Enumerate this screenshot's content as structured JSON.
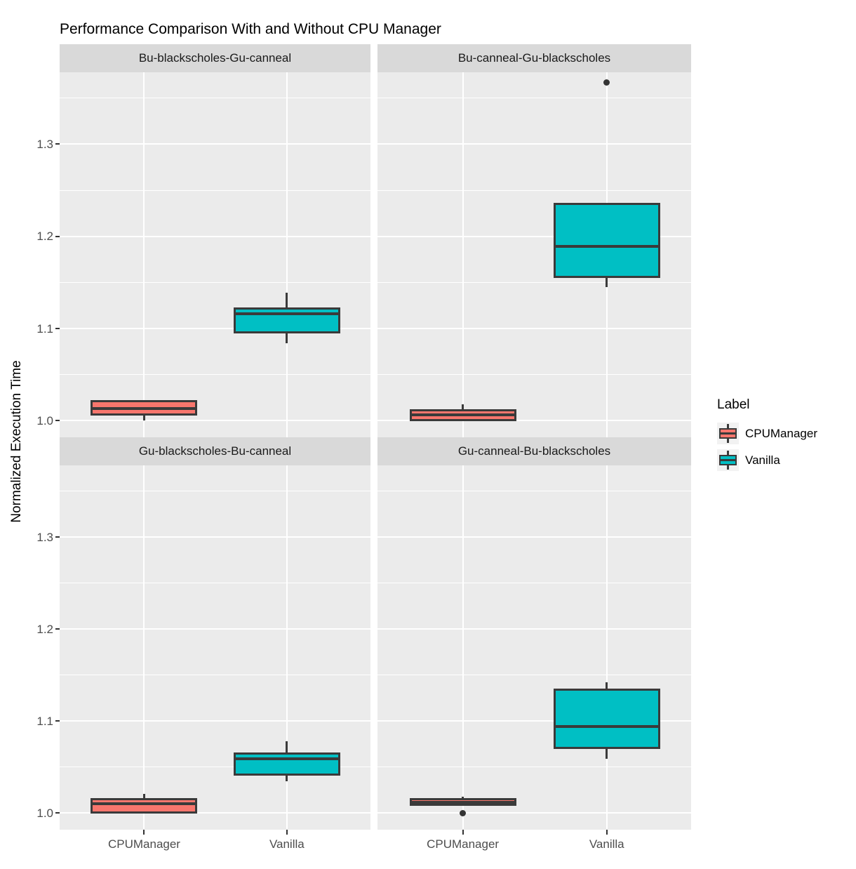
{
  "chart": {
    "title": "Performance Comparison With and Without CPU Manager",
    "ylabel": "Normalized Execution Time",
    "legend": {
      "title": "Label",
      "entries": [
        {
          "label": "CPUManager",
          "color": "#F8766D"
        },
        {
          "label": "Vanilla",
          "color": "#00BFC4"
        }
      ]
    },
    "colors": {
      "cpumanager_fill": "#F8766D",
      "vanilla_fill": "#00BFC4",
      "box_border": "#3A3A3A",
      "panel_bg": "#EBEBEB",
      "strip_bg": "#D9D9D9",
      "gridline": "#FFFFFF",
      "tick_text": "#4D4D4D",
      "outlier_dot": "#333333"
    },
    "chart_data": {
      "type": "boxplot",
      "faceted": true,
      "x_categories": [
        "CPUManager",
        "Vanilla"
      ],
      "ylabel": "Normalized Execution Time",
      "y_ticks": [
        "1.0",
        "1.1",
        "1.2",
        "1.3"
      ],
      "y_tick_values": [
        1.0,
        1.1,
        1.2,
        1.3
      ],
      "y_minor_values": [
        1.05,
        1.15,
        1.25,
        1.35
      ],
      "y_range": [
        0.982,
        1.378
      ],
      "grid": true,
      "legend_position": "right",
      "facets": [
        {
          "name": "Bu-blackscholes-Gu-canneal",
          "row": 0,
          "col": 0,
          "boxes": [
            {
              "group": "CPUManager",
              "series": "CPUManager",
              "min": 1.0,
              "q1": 1.007,
              "median": 1.013,
              "q3": 1.021,
              "max": 1.022,
              "outliers": []
            },
            {
              "group": "Vanilla",
              "series": "Vanilla",
              "min": 1.084,
              "q1": 1.096,
              "median": 1.116,
              "q3": 1.122,
              "max": 1.139,
              "outliers": []
            }
          ]
        },
        {
          "name": "Bu-canneal-Gu-blackscholes",
          "row": 0,
          "col": 1,
          "boxes": [
            {
              "group": "CPUManager",
              "series": "CPUManager",
              "min": 1.0,
              "q1": 1.001,
              "median": 1.006,
              "q3": 1.011,
              "max": 1.018,
              "outliers": []
            },
            {
              "group": "Vanilla",
              "series": "Vanilla",
              "min": 1.145,
              "q1": 1.156,
              "median": 1.189,
              "q3": 1.235,
              "max": 1.235,
              "outliers": [
                1.367
              ]
            }
          ]
        },
        {
          "name": "Gu-blackscholes-Bu-canneal",
          "row": 1,
          "col": 0,
          "boxes": [
            {
              "group": "CPUManager",
              "series": "CPUManager",
              "min": 1.001,
              "q1": 1.001,
              "median": 1.01,
              "q3": 1.015,
              "max": 1.021,
              "outliers": []
            },
            {
              "group": "Vanilla",
              "series": "Vanilla",
              "min": 1.035,
              "q1": 1.042,
              "median": 1.059,
              "q3": 1.065,
              "max": 1.078,
              "outliers": []
            }
          ]
        },
        {
          "name": "Gu-canneal-Bu-blackscholes",
          "row": 1,
          "col": 1,
          "boxes": [
            {
              "group": "CPUManager",
              "series": "CPUManager",
              "min": 1.009,
              "q1": 1.009,
              "median": 1.012,
              "q3": 1.015,
              "max": 1.018,
              "outliers": [
                1.0
              ]
            },
            {
              "group": "Vanilla",
              "series": "Vanilla",
              "min": 1.059,
              "q1": 1.071,
              "median": 1.094,
              "q3": 1.134,
              "max": 1.142,
              "outliers": []
            }
          ]
        }
      ]
    }
  }
}
